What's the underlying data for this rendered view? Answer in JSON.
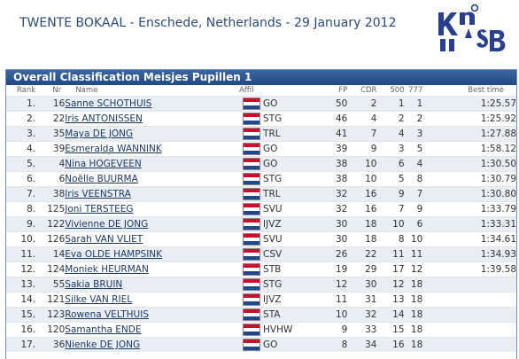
{
  "header": {
    "event_title": "TWENTE BOKAAL - Enschede, Netherlands - 29 January 2012",
    "logo_text": "KNSB"
  },
  "panel": {
    "title": "Overall Classification Meisjes Pupillen 1"
  },
  "columns": {
    "rank": "Rank",
    "nr": "Nr",
    "name": "Name",
    "affil": "Affil",
    "fp": "FP",
    "cdr": "CDR",
    "c500": "500",
    "c777": "777",
    "best": "Best time"
  },
  "colors": {
    "title_bar": "#2b5590",
    "row_alt": "#e9eef5",
    "flag_red": "#c8102e",
    "flag_blue": "#21468b"
  },
  "rows": [
    {
      "rank": "1.",
      "nr": "16",
      "name": "Sanne SCHOTHUIS",
      "club": "GO",
      "fp": "50",
      "cdr": "2",
      "c500": "1",
      "c777": "1",
      "best": "1:25.57"
    },
    {
      "rank": "2.",
      "nr": "22",
      "name": "Iris ANTONISSEN",
      "club": "STG",
      "fp": "46",
      "cdr": "4",
      "c500": "2",
      "c777": "2",
      "best": "1:25.92"
    },
    {
      "rank": "3.",
      "nr": "35",
      "name": "Maya DE JONG",
      "club": "TRL",
      "fp": "41",
      "cdr": "7",
      "c500": "4",
      "c777": "3",
      "best": "1:27.88"
    },
    {
      "rank": "4.",
      "nr": "39",
      "name": "Esmeralda WANNINK",
      "club": "GO",
      "fp": "39",
      "cdr": "9",
      "c500": "3",
      "c777": "5",
      "best": "1:58.12"
    },
    {
      "rank": "5.",
      "nr": "4",
      "name": "Nina HOGEVEEN",
      "club": "GO",
      "fp": "38",
      "cdr": "10",
      "c500": "6",
      "c777": "4",
      "best": "1:30.50"
    },
    {
      "rank": "6.",
      "nr": "6",
      "name": "Noëlle BUURMA",
      "club": "STG",
      "fp": "38",
      "cdr": "10",
      "c500": "5",
      "c777": "8",
      "best": "1:30.79"
    },
    {
      "rank": "7.",
      "nr": "38",
      "name": "Iris VEENSTRA",
      "club": "TRL",
      "fp": "32",
      "cdr": "16",
      "c500": "9",
      "c777": "7",
      "best": "1:30.80"
    },
    {
      "rank": "8.",
      "nr": "125",
      "name": "Joni TERSTEEG",
      "club": "SVU",
      "fp": "32",
      "cdr": "16",
      "c500": "7",
      "c777": "9",
      "best": "1:33.79"
    },
    {
      "rank": "9.",
      "nr": "122",
      "name": "Vivienne DE JONG",
      "club": "IJVZ",
      "fp": "30",
      "cdr": "18",
      "c500": "10",
      "c777": "6",
      "best": "1:33.31"
    },
    {
      "rank": "10.",
      "nr": "126",
      "name": "Sarah VAN VLIET",
      "club": "SVU",
      "fp": "30",
      "cdr": "18",
      "c500": "8",
      "c777": "10",
      "best": "1:34.61"
    },
    {
      "rank": "11.",
      "nr": "14",
      "name": "Eva OLDE HAMPSINK",
      "club": "CSV",
      "fp": "26",
      "cdr": "22",
      "c500": "11",
      "c777": "11",
      "best": "1:34.93"
    },
    {
      "rank": "12.",
      "nr": "124",
      "name": "Moniek HEURMAN",
      "club": "STB",
      "fp": "19",
      "cdr": "29",
      "c500": "17",
      "c777": "12",
      "best": "1:39.58"
    },
    {
      "rank": "13.",
      "nr": "55",
      "name": "Sakia BRUIN",
      "club": "STG",
      "fp": "12",
      "cdr": "30",
      "c500": "12",
      "c777": "18",
      "best": ""
    },
    {
      "rank": "14.",
      "nr": "121",
      "name": "Silke VAN RIEL",
      "club": "IJVZ",
      "fp": "11",
      "cdr": "31",
      "c500": "13",
      "c777": "18",
      "best": ""
    },
    {
      "rank": "15.",
      "nr": "123",
      "name": "Rowena VELTHUIS",
      "club": "STA",
      "fp": "10",
      "cdr": "32",
      "c500": "14",
      "c777": "18",
      "best": ""
    },
    {
      "rank": "16.",
      "nr": "120",
      "name": "Samantha ENDE",
      "club": "HVHW",
      "fp": "9",
      "cdr": "33",
      "c500": "15",
      "c777": "18",
      "best": ""
    },
    {
      "rank": "17.",
      "nr": "36",
      "name": "Nienke DE JONG",
      "club": "GO",
      "fp": "8",
      "cdr": "34",
      "c500": "16",
      "c777": "18",
      "best": ""
    }
  ]
}
